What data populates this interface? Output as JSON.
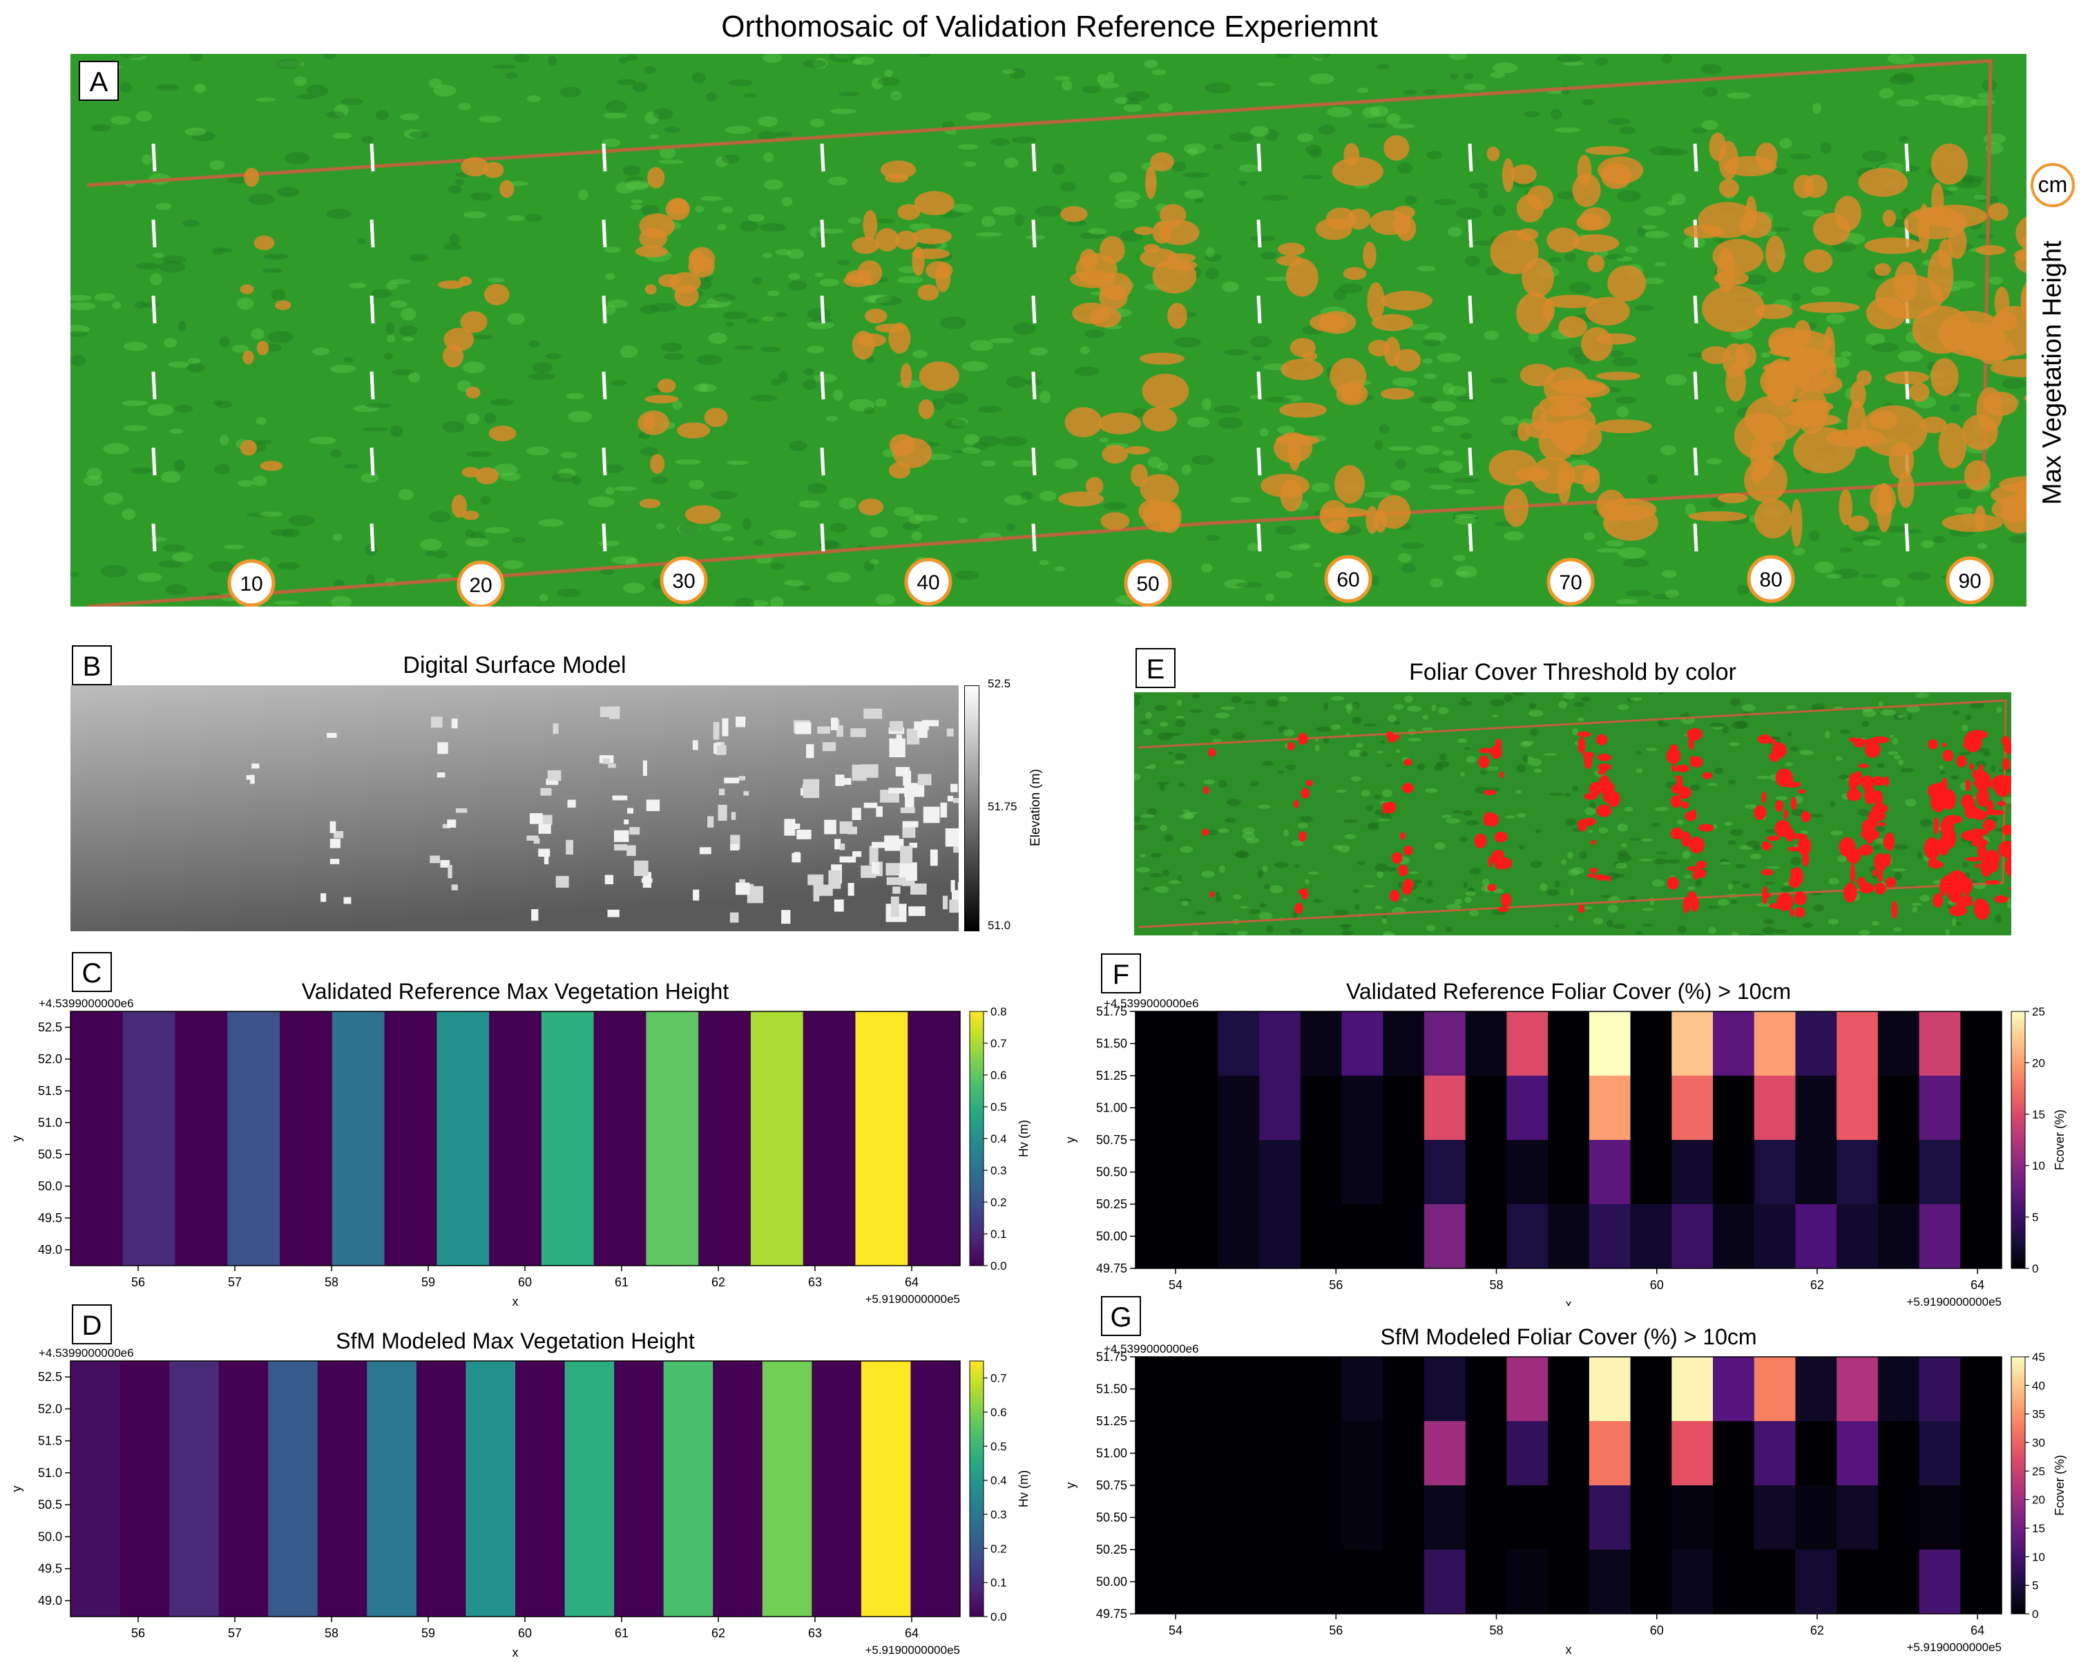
{
  "figure_title": "Orthomosaic of Validation Reference Experiemnt",
  "panels": {
    "A": {
      "letter": "A",
      "side_label": "Max Vegetation Height",
      "unit_badge": "cm",
      "height_markers": [
        "10",
        "20",
        "30",
        "40",
        "50",
        "60",
        "70",
        "80",
        "90"
      ],
      "colors": {
        "grass": "#2f9c2a",
        "grass_light": "#5cc948",
        "vegetation": "#d98a2a",
        "marker_border": "#f0962c",
        "rope": "#b8663a"
      }
    },
    "B": {
      "letter": "B",
      "title": "Digital Surface Model",
      "colorbar_label": "Elevation (m)",
      "colorbar_ticks": [
        "52.5",
        "51.75",
        "51.0"
      ]
    },
    "E": {
      "letter": "E",
      "title": "Foliar Cover Threshold by color",
      "colors": {
        "cover": "#ff1a1a"
      }
    }
  },
  "chart_data": [
    {
      "id": "C",
      "letter": "C",
      "type": "heatmap",
      "title": "Validated Reference Max Vegetation Height",
      "xlabel": "x",
      "ylabel": "y",
      "colorbar_label": "Hv (m)",
      "colormap": "viridis",
      "x_offset_label": "+5.9190000000e5",
      "y_offset_label": "+4.5399000000e6",
      "xlim": [
        55.3,
        64.5
      ],
      "ylim": [
        48.75,
        52.75
      ],
      "xticks": [
        "56",
        "57",
        "58",
        "59",
        "60",
        "61",
        "62",
        "63",
        "64"
      ],
      "yticks": [
        "49.0",
        "49.5",
        "50.0",
        "50.5",
        "51.0",
        "51.5",
        "52.0",
        "52.5"
      ],
      "colorbar_range": [
        0,
        0.8
      ],
      "colorbar_ticks": [
        "0.0",
        "0.1",
        "0.2",
        "0.3",
        "0.4",
        "0.5",
        "0.6",
        "0.7",
        "0.8"
      ],
      "values": [
        0.0,
        0.1,
        0.0,
        0.2,
        0.0,
        0.3,
        0.0,
        0.4,
        0.0,
        0.5,
        0.0,
        0.6,
        0.0,
        0.7,
        0.0,
        0.8,
        0.0
      ]
    },
    {
      "id": "D",
      "letter": "D",
      "type": "heatmap",
      "title": "SfM Modeled Max Vegetation Height",
      "xlabel": "x",
      "ylabel": "y",
      "colorbar_label": "Hv (m)",
      "colormap": "viridis",
      "x_offset_label": "+5.9190000000e5",
      "y_offset_label": "+4.5399000000e6",
      "xlim": [
        55.3,
        64.5
      ],
      "ylim": [
        48.75,
        52.75
      ],
      "xticks": [
        "56",
        "57",
        "58",
        "59",
        "60",
        "61",
        "62",
        "63",
        "64"
      ],
      "yticks": [
        "49.0",
        "49.5",
        "50.0",
        "50.5",
        "51.0",
        "51.5",
        "52.0",
        "52.5"
      ],
      "colorbar_range": [
        0,
        0.75
      ],
      "colorbar_ticks": [
        "0.0",
        "0.1",
        "0.2",
        "0.3",
        "0.4",
        "0.5",
        "0.6",
        "0.7"
      ],
      "values": [
        0.03,
        0.0,
        0.09,
        0.0,
        0.21,
        0.0,
        0.3,
        0.0,
        0.38,
        0.0,
        0.47,
        0.0,
        0.53,
        0.0,
        0.59,
        0.0,
        0.75,
        0.0
      ]
    },
    {
      "id": "F",
      "letter": "F",
      "type": "heatmap",
      "title": "Validated Reference Foliar Cover (%) > 10cm",
      "xlabel": "x",
      "ylabel": "y",
      "colorbar_label": "Fcover (%)",
      "colormap": "magma",
      "x_offset_label": "+5.9190000000e5",
      "y_offset_label": "+4.5399000000e6",
      "xlim": [
        53.5,
        64.3
      ],
      "ylim": [
        49.75,
        51.75
      ],
      "xticks": [
        "54",
        "56",
        "58",
        "60",
        "62",
        "64"
      ],
      "yticks": [
        "49.75",
        "50.00",
        "50.25",
        "50.50",
        "50.75",
        "51.00",
        "51.25",
        "51.50",
        "51.75"
      ],
      "colorbar_range": [
        0,
        25
      ],
      "colorbar_ticks": [
        "0",
        "5",
        "10",
        "15",
        "20",
        "25"
      ],
      "rows_top_to_bottom": [
        [
          0,
          0,
          3,
          5,
          1,
          6,
          1,
          8,
          1,
          15,
          0,
          25,
          0,
          22,
          7,
          20,
          4,
          16,
          1,
          14,
          0
        ],
        [
          0,
          0,
          1,
          5,
          0,
          1,
          0,
          15,
          0,
          6,
          0,
          20,
          0,
          17,
          0,
          15,
          1,
          16,
          0,
          7,
          0
        ],
        [
          0,
          0,
          1,
          2,
          0,
          1,
          0,
          3,
          0,
          1,
          0,
          7,
          0,
          2,
          0,
          3,
          1,
          3,
          0,
          3,
          0
        ],
        [
          0,
          0,
          1,
          2,
          0,
          0,
          0,
          9,
          0,
          3,
          1,
          4,
          2,
          5,
          1,
          2,
          6,
          2,
          1,
          7,
          0
        ]
      ]
    },
    {
      "id": "G",
      "letter": "G",
      "type": "heatmap",
      "title": "SfM Modeled Foliar Cover (%) > 10cm",
      "xlabel": "x",
      "ylabel": "y",
      "colorbar_label": "Fcover (%)",
      "colormap": "magma",
      "x_offset_label": "+5.9190000000e5",
      "y_offset_label": "+4.5399000000e6",
      "xlim": [
        53.5,
        64.3
      ],
      "ylim": [
        49.75,
        51.75
      ],
      "xticks": [
        "54",
        "56",
        "58",
        "60",
        "62",
        "64"
      ],
      "yticks": [
        "49.75",
        "50.00",
        "50.25",
        "50.50",
        "50.75",
        "51.00",
        "51.25",
        "51.50",
        "51.75"
      ],
      "colorbar_range": [
        0,
        45
      ],
      "colorbar_ticks": [
        "0",
        "5",
        "10",
        "15",
        "20",
        "25",
        "30",
        "35",
        "40",
        "45"
      ],
      "rows_top_to_bottom": [
        [
          0,
          0,
          0,
          0,
          0,
          2,
          0,
          4,
          0,
          20,
          0,
          44,
          0,
          44,
          12,
          33,
          3,
          22,
          2,
          8,
          0
        ],
        [
          0,
          0,
          0,
          0,
          0,
          1,
          0,
          20,
          0,
          8,
          0,
          32,
          0,
          28,
          0,
          10,
          0,
          12,
          0,
          5,
          0
        ],
        [
          0,
          0,
          0,
          0,
          0,
          1,
          0,
          2,
          0,
          0,
          0,
          8,
          0,
          1,
          0,
          3,
          1,
          3,
          0,
          1,
          0
        ],
        [
          0,
          0,
          0,
          0,
          0,
          0,
          0,
          8,
          0,
          1,
          0,
          2,
          0,
          2,
          0,
          0,
          4,
          0,
          0,
          10,
          0
        ]
      ]
    }
  ]
}
